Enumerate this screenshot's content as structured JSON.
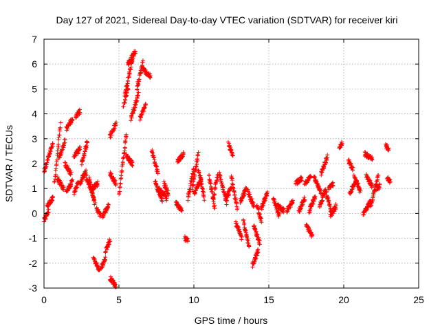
{
  "chart_data": {
    "type": "scatter",
    "title": "Day 127 of 2021, Sidereal Day-to-day VTEC variation (SDTVAR) for receiver kiri",
    "xlabel": "GPS time / hours",
    "ylabel": "SDTVAR / TECUs",
    "xlim": [
      0,
      25
    ],
    "ylim": [
      -3,
      7
    ],
    "xticks": [
      "0",
      "5",
      "10",
      "15",
      "20",
      "25"
    ],
    "yticks": [
      "-3",
      "-2",
      "-1",
      "0",
      "1",
      "2",
      "3",
      "4",
      "5",
      "6",
      "7"
    ],
    "grid": true,
    "marker": "+",
    "color": "#ff0000",
    "segments": [
      {
        "x0": 0.0,
        "x1": 0.3,
        "y0": -0.3,
        "y1": 0.1
      },
      {
        "x0": 0.0,
        "x1": 0.6,
        "y0": 1.7,
        "y1": 2.8
      },
      {
        "x0": 0.2,
        "x1": 0.6,
        "y0": 0.3,
        "y1": 0.6
      },
      {
        "x0": 0.7,
        "x1": 1.1,
        "y0": 1.2,
        "y1": 3.6
      },
      {
        "x0": 1.0,
        "x1": 1.4,
        "y0": 2.2,
        "y1": 2.9
      },
      {
        "x0": 0.9,
        "x1": 1.3,
        "y0": 1.4,
        "y1": 1.0
      },
      {
        "x0": 1.4,
        "x1": 1.8,
        "y0": 2.0,
        "y1": 1.6
      },
      {
        "x0": 1.5,
        "x1": 1.9,
        "y0": 3.4,
        "y1": 3.8
      },
      {
        "x0": 1.5,
        "x1": 1.9,
        "y0": 0.9,
        "y1": 1.3
      },
      {
        "x0": 2.1,
        "x1": 2.4,
        "y0": 3.9,
        "y1": 4.1
      },
      {
        "x0": 2.0,
        "x1": 2.4,
        "y0": 2.3,
        "y1": 2.6
      },
      {
        "x0": 2.0,
        "x1": 2.3,
        "y0": 0.8,
        "y1": 1.3
      },
      {
        "x0": 2.5,
        "x1": 2.9,
        "y0": 2.0,
        "y1": 2.9
      },
      {
        "x0": 2.4,
        "x1": 2.8,
        "y0": 1.2,
        "y1": 1.7
      },
      {
        "x0": 2.8,
        "x1": 3.3,
        "y0": 1.5,
        "y1": 0.7
      },
      {
        "x0": 3.0,
        "x1": 3.4,
        "y0": 1.4,
        "y1": 0.4
      },
      {
        "x0": 3.2,
        "x1": 3.6,
        "y0": 1.0,
        "y1": 1.2
      },
      {
        "x0": 3.3,
        "x1": 3.7,
        "y0": -1.8,
        "y1": -2.3
      },
      {
        "x0": 3.5,
        "x1": 3.8,
        "y0": 0.2,
        "y1": -0.1
      },
      {
        "x0": 3.8,
        "x1": 4.1,
        "y0": -2.2,
        "y1": -1.8
      },
      {
        "x0": 3.9,
        "x1": 4.3,
        "y0": -0.1,
        "y1": 0.3
      },
      {
        "x0": 4.1,
        "x1": 4.4,
        "y0": -1.5,
        "y1": -1.1
      },
      {
        "x0": 4.4,
        "x1": 4.8,
        "y0": -2.6,
        "y1": -2.9
      },
      {
        "x0": 4.4,
        "x1": 4.8,
        "y0": 3.1,
        "y1": 3.6
      },
      {
        "x0": 4.4,
        "x1": 4.8,
        "y0": 1.6,
        "y1": 1.2
      },
      {
        "x0": 5.0,
        "x1": 5.5,
        "y0": 0.8,
        "y1": 3.2
      },
      {
        "x0": 5.3,
        "x1": 5.6,
        "y0": 4.3,
        "y1": 5.0
      },
      {
        "x0": 5.4,
        "x1": 5.9,
        "y0": 4.8,
        "y1": 6.2
      },
      {
        "x0": 5.6,
        "x1": 6.1,
        "y0": 6.0,
        "y1": 6.5
      },
      {
        "x0": 5.8,
        "x1": 6.3,
        "y0": 3.8,
        "y1": 4.8
      },
      {
        "x0": 5.5,
        "x1": 5.9,
        "y0": 2.3,
        "y1": 2.0
      },
      {
        "x0": 6.2,
        "x1": 6.6,
        "y0": 5.0,
        "y1": 6.1
      },
      {
        "x0": 6.4,
        "x1": 6.8,
        "y0": 3.8,
        "y1": 4.4
      },
      {
        "x0": 6.6,
        "x1": 7.1,
        "y0": 5.8,
        "y1": 5.5
      },
      {
        "x0": 7.2,
        "x1": 7.6,
        "y0": 2.5,
        "y1": 1.6
      },
      {
        "x0": 7.4,
        "x1": 7.9,
        "y0": 1.3,
        "y1": 0.5
      },
      {
        "x0": 7.6,
        "x1": 8.2,
        "y0": 1.0,
        "y1": 0.6
      },
      {
        "x0": 8.0,
        "x1": 8.3,
        "y0": 1.2,
        "y1": 0.8
      },
      {
        "x0": 8.8,
        "x1": 9.2,
        "y0": 0.4,
        "y1": 0.1
      },
      {
        "x0": 8.9,
        "x1": 9.3,
        "y0": 2.1,
        "y1": 2.4
      },
      {
        "x0": 9.4,
        "x1": 9.6,
        "y0": -1.0,
        "y1": -1.1
      },
      {
        "x0": 9.6,
        "x1": 10.0,
        "y0": 0.6,
        "y1": 1.8
      },
      {
        "x0": 9.9,
        "x1": 10.3,
        "y0": 1.0,
        "y1": 2.4
      },
      {
        "x0": 10.0,
        "x1": 10.5,
        "y0": 0.8,
        "y1": 1.4
      },
      {
        "x0": 10.3,
        "x1": 10.7,
        "y0": 1.8,
        "y1": 0.6
      },
      {
        "x0": 11.0,
        "x1": 11.4,
        "y0": 1.5,
        "y1": 0.2
      },
      {
        "x0": 11.3,
        "x1": 11.6,
        "y0": 0.6,
        "y1": 1.6
      },
      {
        "x0": 11.7,
        "x1": 12.2,
        "y0": 1.6,
        "y1": 0.4
      },
      {
        "x0": 12.1,
        "x1": 12.5,
        "y0": 0.6,
        "y1": 1.0
      },
      {
        "x0": 12.3,
        "x1": 12.6,
        "y0": 2.8,
        "y1": 2.3
      },
      {
        "x0": 12.5,
        "x1": 12.9,
        "y0": 1.5,
        "y1": 0.2
      },
      {
        "x0": 12.8,
        "x1": 13.2,
        "y0": -0.4,
        "y1": -1.0
      },
      {
        "x0": 13.1,
        "x1": 13.5,
        "y0": 0.5,
        "y1": 1.0
      },
      {
        "x0": 13.3,
        "x1": 13.7,
        "y0": -0.3,
        "y1": -1.4
      },
      {
        "x0": 13.6,
        "x1": 14.0,
        "y0": 0.9,
        "y1": 0.3
      },
      {
        "x0": 13.9,
        "x1": 14.3,
        "y0": -2.1,
        "y1": -1.5
      },
      {
        "x0": 14.0,
        "x1": 14.4,
        "y0": -0.5,
        "y1": -1.2
      },
      {
        "x0": 14.2,
        "x1": 14.5,
        "y0": 0.3,
        "y1": -0.3
      },
      {
        "x0": 14.5,
        "x1": 14.9,
        "y0": 0.2,
        "y1": 0.8
      },
      {
        "x0": 15.3,
        "x1": 15.7,
        "y0": 0.6,
        "y1": -0.1
      },
      {
        "x0": 15.6,
        "x1": 16.0,
        "y0": 0.3,
        "y1": 0.1
      },
      {
        "x0": 16.2,
        "x1": 16.6,
        "y0": 0.1,
        "y1": 0.5
      },
      {
        "x0": 16.8,
        "x1": 17.2,
        "y0": 1.2,
        "y1": 1.4
      },
      {
        "x0": 17.0,
        "x1": 17.4,
        "y0": 0.1,
        "y1": 0.6
      },
      {
        "x0": 17.4,
        "x1": 17.8,
        "y0": 1.2,
        "y1": 1.5
      },
      {
        "x0": 17.5,
        "x1": 17.9,
        "y0": -0.5,
        "y1": -0.9
      },
      {
        "x0": 17.7,
        "x1": 18.1,
        "y0": 0.1,
        "y1": 0.7
      },
      {
        "x0": 18.0,
        "x1": 18.5,
        "y0": 1.5,
        "y1": 0.8
      },
      {
        "x0": 18.4,
        "x1": 18.8,
        "y0": 0.3,
        "y1": 1.0
      },
      {
        "x0": 18.5,
        "x1": 18.9,
        "y0": 1.6,
        "y1": 2.3
      },
      {
        "x0": 18.8,
        "x1": 19.2,
        "y0": 0.9,
        "y1": 0.0
      },
      {
        "x0": 19.0,
        "x1": 19.3,
        "y0": 1.0,
        "y1": 1.2
      },
      {
        "x0": 19.1,
        "x1": 19.5,
        "y0": -0.1,
        "y1": 0.3
      },
      {
        "x0": 19.7,
        "x1": 19.9,
        "y0": 2.7,
        "y1": 2.8
      },
      {
        "x0": 20.4,
        "x1": 20.8,
        "y0": 0.8,
        "y1": 1.3
      },
      {
        "x0": 20.3,
        "x1": 20.6,
        "y0": 2.1,
        "y1": 1.8
      },
      {
        "x0": 20.7,
        "x1": 21.1,
        "y0": 1.5,
        "y1": 0.9
      },
      {
        "x0": 21.3,
        "x1": 21.8,
        "y0": 0.0,
        "y1": 0.5
      },
      {
        "x0": 21.4,
        "x1": 21.9,
        "y0": 2.4,
        "y1": 2.2
      },
      {
        "x0": 21.5,
        "x1": 21.9,
        "y0": 1.5,
        "y1": 1.1
      },
      {
        "x0": 21.8,
        "x1": 22.3,
        "y0": 0.3,
        "y1": 1.5
      },
      {
        "x0": 22.2,
        "x1": 22.4,
        "y0": 1.0,
        "y1": 1.1
      },
      {
        "x0": 22.8,
        "x1": 23.0,
        "y0": 2.7,
        "y1": 2.6
      },
      {
        "x0": 22.9,
        "x1": 23.1,
        "y0": 1.4,
        "y1": 1.3
      }
    ]
  }
}
